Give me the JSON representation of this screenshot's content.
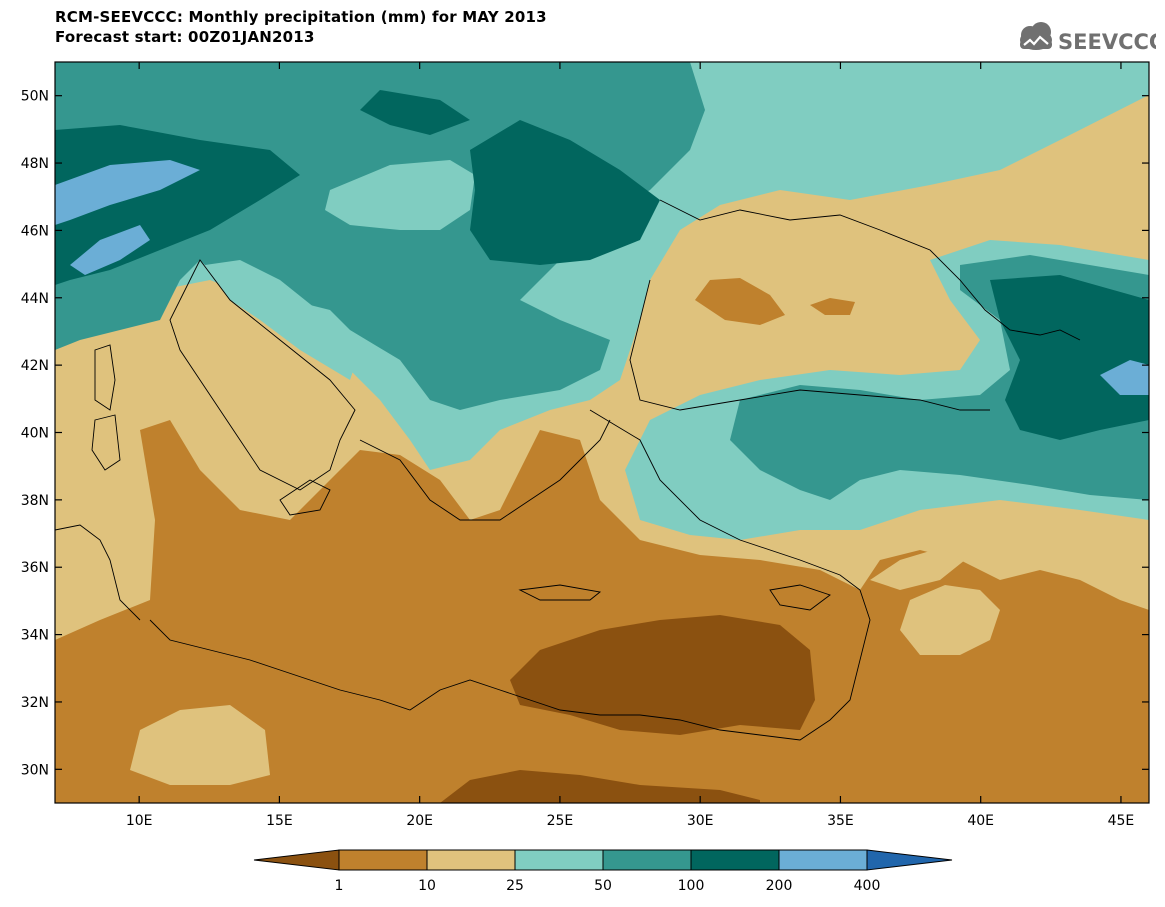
{
  "header": {
    "title": "RCM-SEEVCCC: Monthly precipitation (mm) for MAY 2013",
    "subtitle": "Forecast start: 00Z01JAN2013"
  },
  "logo": {
    "text": "SEEVCCC",
    "icon": "cloud-icon",
    "color": "#707070"
  },
  "map": {
    "lon_range": [
      7,
      46
    ],
    "lat_range": [
      29,
      51
    ],
    "lat_ticks": [
      {
        "value": 30,
        "label": "30N"
      },
      {
        "value": 32,
        "label": "32N"
      },
      {
        "value": 34,
        "label": "34N"
      },
      {
        "value": 36,
        "label": "36N"
      },
      {
        "value": 38,
        "label": "38N"
      },
      {
        "value": 40,
        "label": "40N"
      },
      {
        "value": 42,
        "label": "42N"
      },
      {
        "value": 44,
        "label": "44N"
      },
      {
        "value": 46,
        "label": "46N"
      },
      {
        "value": 48,
        "label": "48N"
      },
      {
        "value": 50,
        "label": "50N"
      }
    ],
    "lon_ticks": [
      {
        "value": 10,
        "label": "10E"
      },
      {
        "value": 15,
        "label": "15E"
      },
      {
        "value": 20,
        "label": "20E"
      },
      {
        "value": 25,
        "label": "25E"
      },
      {
        "value": 30,
        "label": "30E"
      },
      {
        "value": 35,
        "label": "35E"
      },
      {
        "value": 40,
        "label": "40E"
      },
      {
        "value": 45,
        "label": "45E"
      }
    ]
  },
  "colorbar": {
    "colors": [
      "#8b5110",
      "#bf812d",
      "#dfc27d",
      "#80cdc1",
      "#35978f",
      "#01665e",
      "#6baed6",
      "#2166ac"
    ],
    "labels": [
      "1",
      "10",
      "25",
      "50",
      "100",
      "200",
      "400"
    ]
  }
}
